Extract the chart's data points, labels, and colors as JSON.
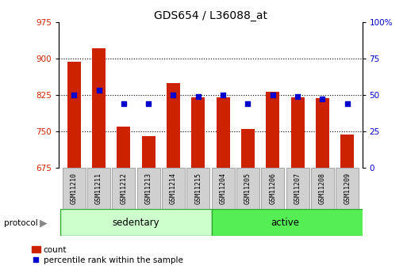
{
  "title": "GDS654 / L36088_at",
  "samples": [
    "GSM11210",
    "GSM11211",
    "GSM11212",
    "GSM11213",
    "GSM11214",
    "GSM11215",
    "GSM11204",
    "GSM11205",
    "GSM11206",
    "GSM11207",
    "GSM11208",
    "GSM11209"
  ],
  "count_values": [
    893,
    920,
    760,
    740,
    850,
    820,
    820,
    755,
    832,
    820,
    818,
    743
  ],
  "percentile_values": [
    50,
    53,
    44,
    44,
    50,
    49,
    50,
    44,
    50,
    49,
    47,
    44
  ],
  "ylim_left": [
    675,
    975
  ],
  "ylim_right": [
    0,
    100
  ],
  "yticks_left": [
    675,
    750,
    825,
    900,
    975
  ],
  "yticks_right": [
    0,
    25,
    50,
    75,
    100
  ],
  "bar_color": "#cc2200",
  "dot_color": "#0000cc",
  "bg_color": "#ffffff",
  "label_box_color": "#d0d0d0",
  "label_box_edge": "#999999",
  "sedentary_color": "#ccffcc",
  "active_color": "#55ee55",
  "group_edge_color": "#33aa33",
  "label_count": "count",
  "label_percentile": "percentile rank within the sample",
  "left_tick_color": "#cc2200",
  "right_tick_color": "#0000cc",
  "title_fontsize": 10,
  "bar_width": 0.55
}
